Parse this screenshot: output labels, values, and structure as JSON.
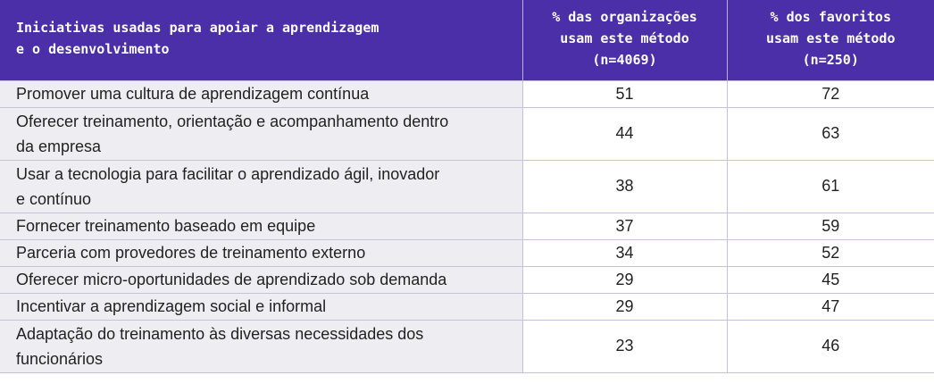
{
  "header": {
    "col1_line1": "Iniciativas usadas para apoiar a aprendizagem",
    "col1_line2": "e o desenvolvimento",
    "col2_line1": "% das organizações",
    "col2_line2": "usam este método",
    "col2_line3": "(n=4069)",
    "col3_line1": "% dos favoritos",
    "col3_line2": "usam este método",
    "col3_line3": "(n=250)"
  },
  "rows": [
    {
      "line1": "Promover uma cultura de aprendizagem contínua",
      "line2": "",
      "org": "51",
      "fav": "72"
    },
    {
      "line1": "Oferecer treinamento, orientação e acompanhamento dentro",
      "line2": "da empresa",
      "org": "44",
      "fav": "63"
    },
    {
      "line1": "Usar a tecnologia para facilitar o aprendizado ágil, inovador",
      "line2": "e contínuo",
      "org": "38",
      "fav": "61"
    },
    {
      "line1": "Fornecer treinamento baseado em equipe",
      "line2": "",
      "org": "37",
      "fav": "59"
    },
    {
      "line1": "Parceria com provedores de treinamento externo",
      "line2": "",
      "org": "34",
      "fav": "52"
    },
    {
      "line1": "Oferecer micro-oportunidades de aprendizado sob demanda",
      "line2": "",
      "org": "29",
      "fav": "45"
    },
    {
      "line1": "Incentivar a aprendizagem social e informal",
      "line2": "",
      "org": "29",
      "fav": "47"
    },
    {
      "line1": "Adaptação do treinamento às diversas necessidades dos",
      "line2": "funcionários",
      "org": "23",
      "fav": "46"
    }
  ]
}
